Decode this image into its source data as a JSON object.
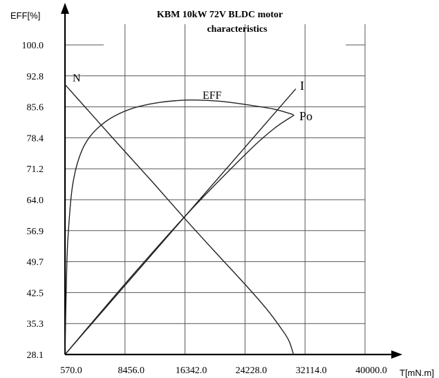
{
  "chart_data": {
    "type": "line",
    "title": "KBM 10kW 72V BLDC motor",
    "subtitle": "characteristics",
    "ylabel": "EFF[%]",
    "xlabel": "T[mN.m]",
    "xlim": [
      570,
      40000
    ],
    "ylim": [
      28.1,
      100
    ],
    "x_tick_labels": [
      "570.0",
      "8456.0",
      "16342.0",
      "24228.0",
      "32114.0",
      "40000.0"
    ],
    "y_tick_labels": [
      "28.1",
      "35.3",
      "42.5",
      "49.7",
      "56.9",
      "64.0",
      "71.2",
      "78.4",
      "85.6",
      "92.8",
      "100.0"
    ],
    "grid": true,
    "series": [
      {
        "name": "EFF",
        "x": [
          570,
          820,
          1150,
          1500,
          2000,
          2800,
          3800,
          5200,
          7000,
          9500,
          12500,
          15500,
          18000,
          21000,
          24500,
          28000,
          30600
        ],
        "y": [
          28.1,
          50.0,
          60.0,
          66.5,
          71.2,
          75.5,
          78.6,
          81.2,
          83.4,
          85.3,
          86.5,
          87.1,
          87.2,
          86.9,
          86.1,
          85.1,
          83.8
        ]
      },
      {
        "name": "N",
        "x": [
          570,
          4000,
          8000,
          12000,
          16342,
          20000,
          24228,
          27000,
          29000,
          30000,
          30600
        ],
        "y": [
          90.8,
          84.0,
          76.1,
          68.3,
          59.6,
          52.5,
          44.4,
          38.8,
          34.1,
          31.3,
          28.1
        ]
      },
      {
        "name": "I",
        "x": [
          570,
          30900
        ],
        "y": [
          28.1,
          89.8
        ]
      },
      {
        "name": "Po",
        "x": [
          570,
          8456,
          16342,
          24228,
          28000,
          30700
        ],
        "y": [
          28.1,
          44.5,
          60.2,
          74.5,
          80.5,
          83.7
        ]
      }
    ]
  }
}
